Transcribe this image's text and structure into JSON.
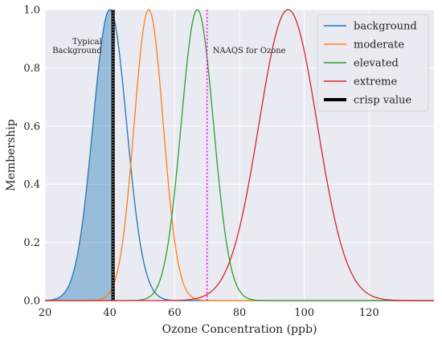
{
  "chart_data": {
    "type": "line",
    "xlabel": "Ozone Concentration (ppb)",
    "ylabel": "Membership",
    "xlim": [
      20,
      140
    ],
    "ylim": [
      0,
      1.0
    ],
    "xticks": [
      "20",
      "40",
      "60",
      "80",
      "100",
      "120"
    ],
    "yticks": [
      "0.0",
      "0.2",
      "0.4",
      "0.6",
      "0.8",
      "1.0"
    ],
    "grid": true,
    "legend_position": "top-right",
    "series": [
      {
        "name": "background",
        "color": "#1f77b4",
        "shape": "gaussian",
        "peak": 40,
        "sigma": 5.2,
        "filled_up_to": 41
      },
      {
        "name": "moderate",
        "color": "#ff7f0e",
        "shape": "gaussian",
        "peak": 52,
        "sigma": 4.5
      },
      {
        "name": "elevated",
        "color": "#2ca02c",
        "shape": "gaussian",
        "peak": 67,
        "sigma": 5.0
      },
      {
        "name": "extreme",
        "color": "#d62728",
        "shape": "gaussian",
        "peak": 95,
        "sigma": 9.0
      },
      {
        "name": "crisp value",
        "color": "#000000",
        "shape": "vline",
        "x": 41
      }
    ],
    "reference_lines": [
      {
        "x": 70,
        "color": "#ff00ff",
        "style": "dotted",
        "label": "NAAQS for Ozone"
      }
    ],
    "annotations": [
      {
        "text_lines": [
          "Typical",
          "Background"
        ],
        "x": 40
      }
    ]
  }
}
